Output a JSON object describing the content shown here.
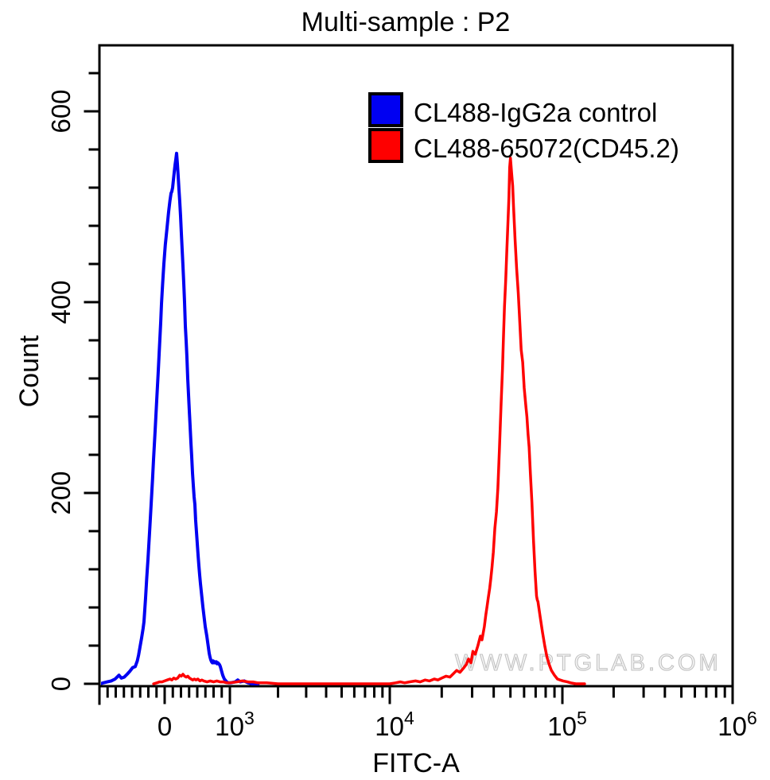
{
  "title": "Multi-sample : P2",
  "watermark": "WWW.PTGLAB.COM",
  "legend": [
    {
      "label": "CL488-IgG2a control",
      "color": "#0000f2"
    },
    {
      "label": "CL488-65072(CD45.2)",
      "color": "#fe0000"
    }
  ],
  "axes": {
    "x": {
      "label": "FITC-A",
      "scale": "biexponential",
      "tick_values": [
        0,
        1000,
        10000,
        100000,
        1000000
      ],
      "tick_labels": [
        "0",
        "10^3",
        "10^4",
        "10^5",
        "10^6"
      ],
      "linear_range": [
        -1000,
        1000
      ],
      "linear_minor_step": 125
    },
    "y": {
      "label": "Count",
      "tick_values": [
        0,
        200,
        400,
        600
      ],
      "tick_labels": [
        "0",
        "200",
        "400",
        "600"
      ],
      "minor_step": 40,
      "max": 668
    }
  },
  "chart_data": {
    "type": "line",
    "subtype": "flow-cytometry-histogram",
    "title": "Multi-sample : P2",
    "xlabel": "FITC-A",
    "ylabel": "Count",
    "x_scale": "biexponential (linear below 10^3, log decades above)",
    "ylim": [
      0,
      668
    ],
    "legend_position": "top-right",
    "series": [
      {
        "name": "CL488-IgG2a control",
        "color": "#0000f2",
        "peak": {
          "x": 180,
          "count": 556
        },
        "points": [
          [
            -990,
            0
          ],
          [
            -940,
            1
          ],
          [
            -880,
            2
          ],
          [
            -820,
            3
          ],
          [
            -760,
            5
          ],
          [
            -700,
            9
          ],
          [
            -665,
            6
          ],
          [
            -620,
            7
          ],
          [
            -575,
            10
          ],
          [
            -535,
            13
          ],
          [
            -490,
            17
          ],
          [
            -451,
            18
          ],
          [
            -420,
            24
          ],
          [
            -400,
            30
          ],
          [
            -375,
            40
          ],
          [
            -354,
            48
          ],
          [
            -330,
            58
          ],
          [
            -317,
            65
          ],
          [
            -293,
            90
          ],
          [
            -275,
            110
          ],
          [
            -256,
            130
          ],
          [
            -230,
            160
          ],
          [
            -207,
            188
          ],
          [
            -185,
            215
          ],
          [
            -171,
            235
          ],
          [
            -146,
            265
          ],
          [
            -122,
            297
          ],
          [
            -100,
            325
          ],
          [
            -85,
            345
          ],
          [
            -60,
            380
          ],
          [
            -49,
            398
          ],
          [
            -30,
            420
          ],
          [
            -12,
            440
          ],
          [
            10,
            460
          ],
          [
            37,
            478
          ],
          [
            60,
            494
          ],
          [
            80,
            506
          ],
          [
            98,
            514
          ],
          [
            110,
            516
          ],
          [
            122,
            520
          ],
          [
            134,
            528
          ],
          [
            146,
            536
          ],
          [
            160,
            544
          ],
          [
            172,
            550
          ],
          [
            183,
            556
          ],
          [
            195,
            545
          ],
          [
            207,
            532
          ],
          [
            220,
            518
          ],
          [
            232,
            505
          ],
          [
            244,
            490
          ],
          [
            256,
            472
          ],
          [
            268,
            455
          ],
          [
            280,
            438
          ],
          [
            293,
            420
          ],
          [
            305,
            400
          ],
          [
            317,
            375
          ],
          [
            330,
            358
          ],
          [
            341,
            342
          ],
          [
            354,
            320
          ],
          [
            366,
            303
          ],
          [
            378,
            286
          ],
          [
            390,
            270
          ],
          [
            402,
            253
          ],
          [
            415,
            238
          ],
          [
            427,
            221
          ],
          [
            440,
            207
          ],
          [
            451,
            196
          ],
          [
            463,
            188
          ],
          [
            475,
            172
          ],
          [
            488,
            159
          ],
          [
            500,
            147
          ],
          [
            512,
            135
          ],
          [
            524,
            124
          ],
          [
            537,
            114
          ],
          [
            549,
            105
          ],
          [
            561,
            97
          ],
          [
            573,
            89
          ],
          [
            585,
            81
          ],
          [
            598,
            74
          ],
          [
            610,
            67
          ],
          [
            622,
            60
          ],
          [
            634,
            55
          ],
          [
            646,
            50
          ],
          [
            658,
            44
          ],
          [
            671,
            38
          ],
          [
            683,
            32
          ],
          [
            695,
            28
          ],
          [
            707,
            25
          ],
          [
            720,
            23
          ],
          [
            732,
            22
          ],
          [
            744,
            24
          ],
          [
            756,
            22
          ],
          [
            768,
            23
          ],
          [
            781,
            22
          ],
          [
            793,
            23
          ],
          [
            805,
            21
          ],
          [
            817,
            22
          ],
          [
            829,
            21
          ],
          [
            841,
            20
          ],
          [
            854,
            18
          ],
          [
            866,
            15
          ],
          [
            878,
            12
          ],
          [
            890,
            9
          ],
          [
            902,
            7
          ],
          [
            915,
            5
          ],
          [
            927,
            4
          ],
          [
            939,
            3
          ],
          [
            951,
            2
          ],
          [
            976,
            1
          ],
          [
            1010,
            1
          ],
          [
            1080,
            2
          ],
          [
            1120,
            4
          ],
          [
            1160,
            2
          ],
          [
            1230,
            3
          ],
          [
            1300,
            1
          ],
          [
            1380,
            0
          ],
          [
            1500,
            0
          ]
        ]
      },
      {
        "name": "CL488-65072(CD45.2)",
        "color": "#fe0000",
        "peak": {
          "x": 50000,
          "count": 551
        },
        "points": [
          [
            -170,
            0
          ],
          [
            -120,
            1
          ],
          [
            -80,
            2
          ],
          [
            -40,
            2
          ],
          [
            0,
            3
          ],
          [
            40,
            4
          ],
          [
            80,
            5
          ],
          [
            110,
            4
          ],
          [
            140,
            6
          ],
          [
            170,
            5
          ],
          [
            200,
            6
          ],
          [
            230,
            9
          ],
          [
            255,
            8
          ],
          [
            280,
            10
          ],
          [
            305,
            8
          ],
          [
            330,
            7
          ],
          [
            355,
            8
          ],
          [
            380,
            6
          ],
          [
            405,
            5
          ],
          [
            430,
            4
          ],
          [
            455,
            5
          ],
          [
            480,
            4
          ],
          [
            510,
            5
          ],
          [
            540,
            3
          ],
          [
            570,
            4
          ],
          [
            600,
            3
          ],
          [
            650,
            2
          ],
          [
            700,
            3
          ],
          [
            750,
            2
          ],
          [
            800,
            3
          ],
          [
            850,
            2
          ],
          [
            900,
            2
          ],
          [
            950,
            1
          ],
          [
            1000,
            1
          ],
          [
            1100,
            2
          ],
          [
            1200,
            3
          ],
          [
            1300,
            2
          ],
          [
            1400,
            2
          ],
          [
            1500,
            1
          ],
          [
            1700,
            1
          ],
          [
            2000,
            0
          ],
          [
            3000,
            0
          ],
          [
            5000,
            0
          ],
          [
            8000,
            0
          ],
          [
            10000,
            0
          ],
          [
            10800,
            1
          ],
          [
            11500,
            2
          ],
          [
            12200,
            1
          ],
          [
            13000,
            2
          ],
          [
            14100,
            3
          ],
          [
            15000,
            2
          ],
          [
            16000,
            4
          ],
          [
            17000,
            3
          ],
          [
            18100,
            5
          ],
          [
            19000,
            4
          ],
          [
            20000,
            6
          ],
          [
            21200,
            8
          ],
          [
            22300,
            7
          ],
          [
            23500,
            11
          ],
          [
            24400,
            14
          ],
          [
            25500,
            12
          ],
          [
            26900,
            17
          ],
          [
            27700,
            20
          ],
          [
            28600,
            26
          ],
          [
            29500,
            22
          ],
          [
            30300,
            34
          ],
          [
            31300,
            31
          ],
          [
            32400,
            40
          ],
          [
            33500,
            50
          ],
          [
            34200,
            46
          ],
          [
            35300,
            60
          ],
          [
            36000,
            72
          ],
          [
            36600,
            81
          ],
          [
            37200,
            90
          ],
          [
            37900,
            100
          ],
          [
            38500,
            110
          ],
          [
            39100,
            122
          ],
          [
            39800,
            138
          ],
          [
            40600,
            163
          ],
          [
            41500,
            180
          ],
          [
            42300,
            205
          ],
          [
            43200,
            247
          ],
          [
            44100,
            290
          ],
          [
            45000,
            330
          ],
          [
            45500,
            360
          ],
          [
            46200,
            395
          ],
          [
            47000,
            424
          ],
          [
            47700,
            455
          ],
          [
            48300,
            480
          ],
          [
            49000,
            510
          ],
          [
            49500,
            541
          ],
          [
            50000,
            551
          ],
          [
            50800,
            535
          ],
          [
            51500,
            522
          ],
          [
            52100,
            500
          ],
          [
            53200,
            466
          ],
          [
            54300,
            435
          ],
          [
            55500,
            410
          ],
          [
            56300,
            388
          ],
          [
            57700,
            350
          ],
          [
            58900,
            337
          ],
          [
            60100,
            310
          ],
          [
            61500,
            290
          ],
          [
            62300,
            280
          ],
          [
            63200,
            262
          ],
          [
            64200,
            248
          ],
          [
            65300,
            220
          ],
          [
            66600,
            190
          ],
          [
            68000,
            150
          ],
          [
            69400,
            118
          ],
          [
            70800,
            92
          ],
          [
            71500,
            88
          ],
          [
            72200,
            86
          ],
          [
            74400,
            70
          ],
          [
            76700,
            54
          ],
          [
            79000,
            40
          ],
          [
            81400,
            28
          ],
          [
            83900,
            20
          ],
          [
            86400,
            14
          ],
          [
            89900,
            9
          ],
          [
            93600,
            5
          ],
          [
            97000,
            4
          ],
          [
            101000,
            3
          ],
          [
            107000,
            2
          ],
          [
            112000,
            1
          ],
          [
            120000,
            0
          ],
          [
            135000,
            0
          ]
        ]
      }
    ]
  }
}
